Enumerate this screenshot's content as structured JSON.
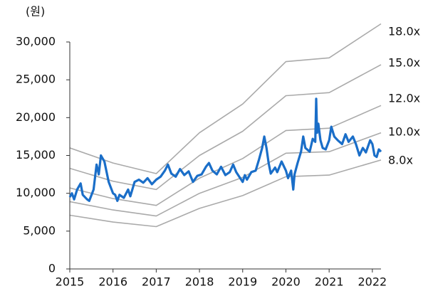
{
  "chart_data": {
    "type": "line",
    "y_label": "(원)",
    "xlim": [
      2015,
      2022.2
    ],
    "xticks": [
      2015,
      2016,
      2017,
      2018,
      2019,
      2020,
      2021,
      2022
    ],
    "ylim": [
      0,
      30000
    ],
    "yticks": [
      0,
      {
        "value": 5000,
        "label": "5,000"
      },
      {
        "value": 10000,
        "label": "10,000"
      },
      {
        "value": 15000,
        "label": "15,000"
      },
      {
        "value": 20000,
        "label": "20,000"
      },
      {
        "value": 25000,
        "label": "25,000"
      },
      {
        "value": 30000,
        "label": "30,000"
      }
    ],
    "grid": false,
    "series": [
      {
        "name": "18.0x",
        "color": "#aaaaaa",
        "x": [
          2015,
          2016,
          2017,
          2018,
          2019,
          2020,
          2021,
          2022.2
        ],
        "values": [
          16000,
          14000,
          12600,
          18000,
          21800,
          27400,
          27900,
          32400
        ]
      },
      {
        "name": "15.0x",
        "color": "#aaaaaa",
        "x": [
          2015,
          2016,
          2017,
          2018,
          2019,
          2020,
          2021,
          2022.2
        ],
        "values": [
          13300,
          11600,
          10500,
          15000,
          18200,
          22900,
          23300,
          27000
        ]
      },
      {
        "name": "12.0x",
        "color": "#aaaaaa",
        "x": [
          2015,
          2016,
          2017,
          2018,
          2019,
          2020,
          2021,
          2022.2
        ],
        "values": [
          10700,
          9300,
          8400,
          12000,
          14600,
          18300,
          18600,
          21600
        ]
      },
      {
        "name": "10.0x",
        "color": "#aaaaaa",
        "x": [
          2015,
          2016,
          2017,
          2018,
          2019,
          2020,
          2021,
          2022.2
        ],
        "values": [
          8900,
          7800,
          7000,
          10000,
          12100,
          15300,
          15500,
          18000
        ]
      },
      {
        "name": "8.0x",
        "color": "#aaaaaa",
        "x": [
          2015,
          2016,
          2017,
          2018,
          2019,
          2020,
          2021,
          2022.2
        ],
        "values": [
          7100,
          6200,
          5600,
          8000,
          9700,
          12200,
          12400,
          14400
        ]
      },
      {
        "color": "#1a6ec8",
        "x": [
          2015,
          2015.05,
          2015.1,
          2015.17,
          2015.25,
          2015.3,
          2015.4,
          2015.45,
          2015.55,
          2015.62,
          2015.67,
          2015.72,
          2015.8,
          2015.9,
          2016,
          2016.05,
          2016.1,
          2016.15,
          2016.25,
          2016.35,
          2016.4,
          2016.5,
          2016.6,
          2016.7,
          2016.8,
          2016.9,
          2017,
          2017.1,
          2017.2,
          2017.27,
          2017.35,
          2017.45,
          2017.55,
          2017.65,
          2017.75,
          2017.85,
          2017.95,
          2018.05,
          2018.15,
          2018.22,
          2018.3,
          2018.4,
          2018.5,
          2018.6,
          2018.7,
          2018.78,
          2018.85,
          2019,
          2019.05,
          2019.1,
          2019.2,
          2019.3,
          2019.38,
          2019.45,
          2019.5,
          2019.55,
          2019.6,
          2019.65,
          2019.75,
          2019.8,
          2019.9,
          2020,
          2020.05,
          2020.12,
          2020.17,
          2020.2,
          2020.27,
          2020.35,
          2020.4,
          2020.45,
          2020.55,
          2020.62,
          2020.68,
          2020.7,
          2020.72,
          2020.75,
          2020.8,
          2020.85,
          2020.92,
          2021,
          2021.05,
          2021.12,
          2021.2,
          2021.3,
          2021.38,
          2021.45,
          2021.55,
          2021.62,
          2021.7,
          2021.78,
          2021.85,
          2021.95,
          2022,
          2022.05,
          2022.1,
          2022.15,
          2022.2
        ],
        "values": [
          9500,
          10000,
          9200,
          10500,
          11300,
          9800,
          9200,
          9000,
          10500,
          13800,
          12500,
          15000,
          14200,
          11500,
          10000,
          9800,
          9000,
          9800,
          9400,
          10500,
          9600,
          11500,
          11800,
          11400,
          12000,
          11200,
          11800,
          12200,
          13000,
          13800,
          12600,
          12200,
          13200,
          12400,
          12900,
          11500,
          12300,
          12500,
          13500,
          14000,
          13000,
          12500,
          13500,
          12400,
          12800,
          13800,
          12800,
          11500,
          12400,
          11800,
          12800,
          13000,
          14500,
          16000,
          17500,
          16000,
          14000,
          12600,
          13400,
          12800,
          14200,
          13000,
          12000,
          13000,
          10500,
          12500,
          14000,
          15500,
          17500,
          16000,
          15500,
          17200,
          16800,
          22500,
          18000,
          19200,
          17000,
          16000,
          15800,
          17000,
          18800,
          17500,
          17000,
          16500,
          17800,
          16800,
          17500,
          16500,
          15000,
          16000,
          15400,
          17000,
          16500,
          15000,
          14800,
          15800,
          15500
        ]
      }
    ]
  }
}
